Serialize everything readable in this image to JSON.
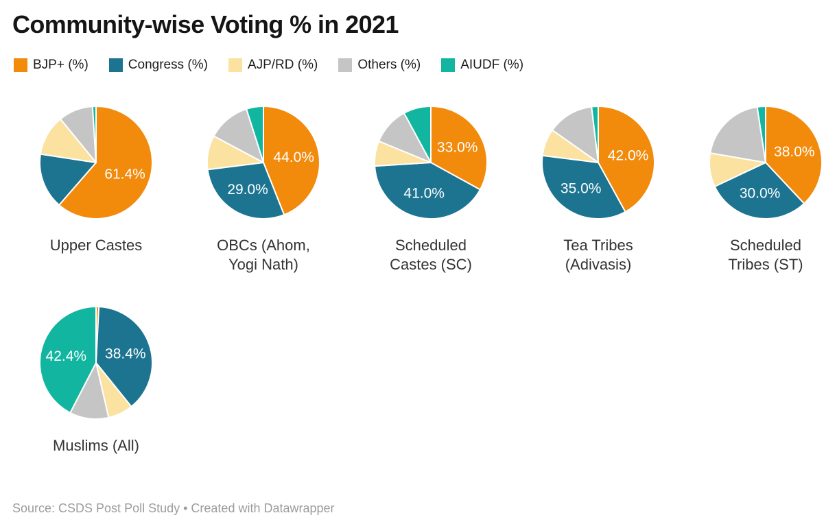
{
  "header": {
    "title": "Community-wise Voting % in 2021"
  },
  "legend": {
    "items": [
      {
        "label": "BJP+ (%)",
        "color": "#f28a0b"
      },
      {
        "label": "Congress (%)",
        "color": "#1d7491"
      },
      {
        "label": "AJP/RD (%)",
        "color": "#fbe2a0"
      },
      {
        "label": "Others (%)",
        "color": "#c5c5c5"
      },
      {
        "label": "AIUDF (%)",
        "color": "#12b6a0"
      }
    ]
  },
  "chart_data": {
    "type": "pie",
    "title": "Community-wise Voting % in 2021",
    "series_keys": [
      "BJP+ (%)",
      "Congress (%)",
      "AJP/RD (%)",
      "Others (%)",
      "AIUDF (%)"
    ],
    "colors": [
      "#f28a0b",
      "#1d7491",
      "#fbe2a0",
      "#c5c5c5",
      "#12b6a0"
    ],
    "unit": "%",
    "pies": [
      {
        "category": "Upper Castes",
        "values": [
          61.4,
          16.0,
          11.7,
          9.9,
          1.0
        ],
        "slice_labels": [
          "61.4%",
          "",
          "",
          "",
          ""
        ]
      },
      {
        "category": "OBCs (Ahom,\nYogi Nath)",
        "values": [
          44.0,
          29.0,
          9.8,
          12.3,
          4.9
        ],
        "slice_labels": [
          "44.0%",
          "29.0%",
          "",
          "",
          ""
        ]
      },
      {
        "category": "Scheduled\nCastes (SC)",
        "values": [
          33.0,
          41.0,
          7.2,
          10.9,
          7.9
        ],
        "slice_labels": [
          "33.0%",
          "41.0%",
          "",
          "",
          ""
        ]
      },
      {
        "category": "Tea Tribes\n(Adivasis)",
        "values": [
          42.0,
          35.0,
          7.8,
          13.3,
          1.9
        ],
        "slice_labels": [
          "42.0%",
          "35.0%",
          "",
          "",
          ""
        ]
      },
      {
        "category": "Scheduled\nTribes (ST)",
        "values": [
          38.0,
          30.0,
          9.7,
          19.9,
          2.4
        ],
        "slice_labels": [
          "38.0%",
          "30.0%",
          "",
          "",
          ""
        ]
      },
      {
        "category": "Muslims (All)",
        "values": [
          0.8,
          38.4,
          7.2,
          11.2,
          42.4
        ],
        "slice_labels": [
          "",
          "38.4%",
          "",
          "",
          "42.4%"
        ]
      }
    ]
  },
  "footer": {
    "source": "Source: CSDS Post Poll Study • Created with Datawrapper"
  }
}
